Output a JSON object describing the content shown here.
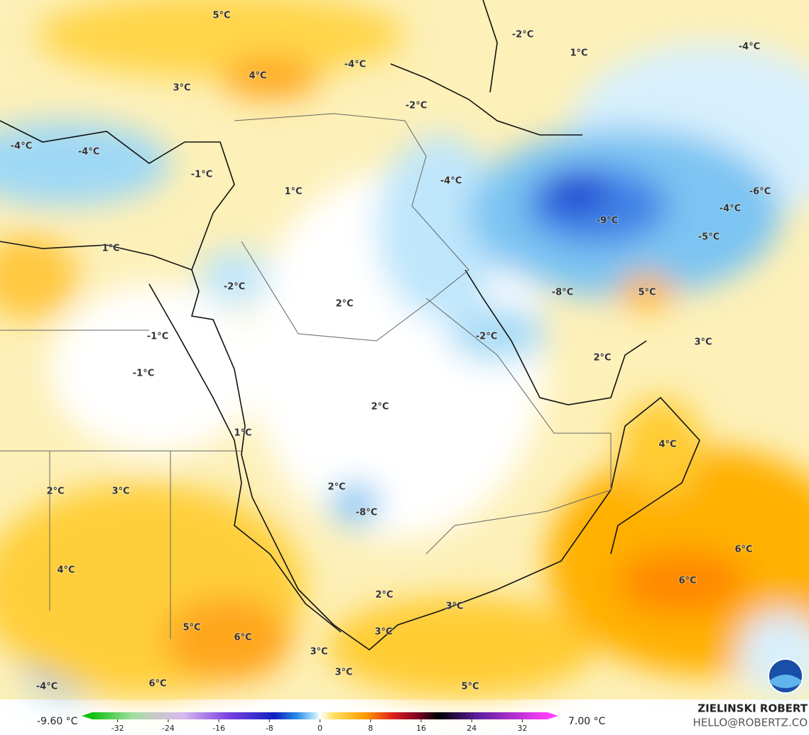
{
  "map": {
    "labels": [
      "5°C",
      "-2°C",
      "1°C",
      "-4°C",
      "-4°C",
      "4°C",
      "3°C",
      "-2°C",
      "-4°C",
      "-4°C",
      "-1°C",
      "-4°C",
      "1°C",
      "-6°C",
      "-4°C",
      "-9°C",
      "-5°C",
      "1°C",
      "-2°C",
      "-8°C",
      "5°C",
      "2°C",
      "-2°C",
      "-1°C",
      "3°C",
      "2°C",
      "-1°C",
      "2°C",
      "1°C",
      "4°C",
      "2°C",
      "3°C",
      "2°C",
      "-8°C",
      "6°C",
      "4°C",
      "6°C",
      "2°C",
      "3°C",
      "5°C",
      "3°C",
      "6°C",
      "3°C",
      "3°C",
      "-4°C",
      "6°C",
      "5°C"
    ],
    "colorbar": {
      "min_label": "-9.60 °C",
      "max_label": "7.00 °C",
      "ticks": [
        -32,
        -24,
        -16,
        -8,
        0,
        8,
        16,
        24,
        32
      ],
      "lim": [
        -36,
        36
      ]
    },
    "credit": {
      "author": "ZIELINSKI ROBERT",
      "contact": "HELLO@ROBERTZ.CO"
    }
  }
}
